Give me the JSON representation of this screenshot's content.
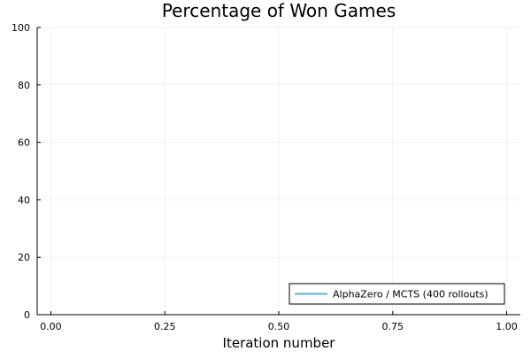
{
  "chart_data": {
    "type": "line",
    "title": "Percentage of Won Games",
    "xlabel": "Iteration number",
    "ylabel": "",
    "xlim": [
      -0.03,
      1.03
    ],
    "ylim": [
      0,
      100
    ],
    "xticks": [
      0.0,
      0.25,
      0.5,
      0.75,
      1.0
    ],
    "xtick_labels": [
      "0.00",
      "0.25",
      "0.50",
      "0.75",
      "1.00"
    ],
    "yticks": [
      0,
      20,
      40,
      60,
      80,
      100
    ],
    "ytick_labels": [
      "0",
      "20",
      "40",
      "60",
      "80",
      "100"
    ],
    "grid": true,
    "legend_position": "bottom-right",
    "series": [
      {
        "name": "AlphaZero / MCTS (400 rollouts)",
        "color": "#56b4e9",
        "x": [],
        "y": []
      }
    ]
  }
}
